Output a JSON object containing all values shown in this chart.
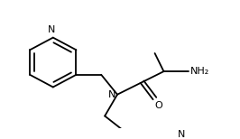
{
  "bg_color": "#ffffff",
  "line_color": "#000000",
  "text_color": "#000000",
  "figsize": [
    2.66,
    1.54
  ],
  "dpi": 100,
  "lw": 1.3,
  "xlim": [
    0,
    266
  ],
  "ylim": [
    0,
    154
  ]
}
